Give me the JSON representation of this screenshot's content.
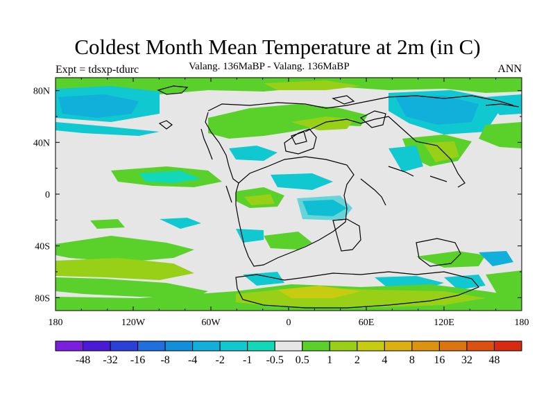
{
  "figure": {
    "title": "Coldest Month Mean Temperature at 2m (in C)",
    "left_label": "Expt = tdsxp-tdurc",
    "center_label": "Valang. 136MaBP - Valang.  136MaBP",
    "right_label": "ANN"
  },
  "map": {
    "projection": "cylindrical-equidistant",
    "lon_range": [
      -180,
      180
    ],
    "lat_range": [
      -90,
      90
    ],
    "x_ticks": [
      {
        "lon": -180,
        "label": "180"
      },
      {
        "lon": -120,
        "label": "120W"
      },
      {
        "lon": -60,
        "label": "60W"
      },
      {
        "lon": 0,
        "label": "0"
      },
      {
        "lon": 60,
        "label": "60E"
      },
      {
        "lon": 120,
        "label": "120E"
      },
      {
        "lon": 180,
        "label": "180"
      }
    ],
    "y_ticks": [
      {
        "lat": 80,
        "label": "80N"
      },
      {
        "lat": 40,
        "label": "40N"
      },
      {
        "lat": 0,
        "label": "0"
      },
      {
        "lat": -40,
        "label": "40S"
      },
      {
        "lat": -80,
        "label": "80S"
      }
    ],
    "background_color": "#e6e6e6",
    "coastline_color": "#000000"
  },
  "colorbar": {
    "colors": [
      "#7a1fe0",
      "#4a1ad6",
      "#2a40d8",
      "#1f6fe0",
      "#1090da",
      "#10b0da",
      "#10c8d0",
      "#10d8b8",
      "#e6e6e6",
      "#5ad02a",
      "#98d018",
      "#c8cc10",
      "#dcb010",
      "#dc9410",
      "#dc7410",
      "#dc5010",
      "#d82a10"
    ],
    "labels": [
      "-48",
      "-32",
      "-16",
      "-8",
      "-4",
      "-2",
      "-1",
      "-0.5",
      "0.5",
      "1",
      "2",
      "4",
      "8",
      "16",
      "32",
      "48"
    ]
  }
}
